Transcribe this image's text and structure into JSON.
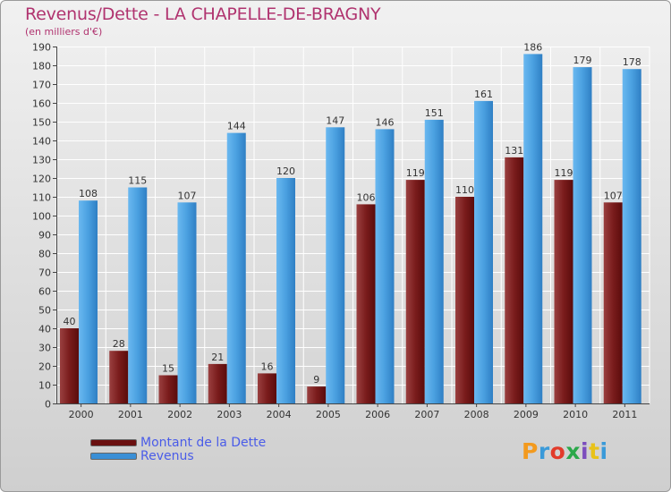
{
  "title": "Revenus/Dette - LA CHAPELLE-DE-BRAGNY",
  "subtitle": "(en milliers d'€)",
  "colors": {
    "debt": "#7a1414",
    "debt_light": "#8a3a3a",
    "revenue": "#3a8fd6",
    "revenue_light": "#5aaeee",
    "axis_text": "#333333",
    "label_text": "#333333",
    "title": "#b0336f",
    "legend_text": "#4a5ce8"
  },
  "legend": [
    {
      "label": "Montant de la Dette",
      "color": "#7a1414"
    },
    {
      "label": "Revenus",
      "color": "#3a8fd6"
    }
  ],
  "logo": {
    "text": "Proxiti",
    "letter_colors": [
      "#f39a1e",
      "#3a9ad9",
      "#e23b2a",
      "#2aa84a",
      "#7c4dbd",
      "#e8c21a",
      "#3a9ad9"
    ]
  },
  "chart_data": {
    "type": "bar",
    "title": "Revenus/Dette - LA CHAPELLE-DE-BRAGNY",
    "subtitle": "(en milliers d'€)",
    "xlabel": "",
    "ylabel": "",
    "ylim": [
      0,
      190
    ],
    "ytick_step": 10,
    "yticks": [
      "0",
      "10",
      "20",
      "30",
      "40",
      "50",
      "60",
      "70",
      "80",
      "90",
      "100",
      "110",
      "120",
      "130",
      "140",
      "150",
      "160",
      "170",
      "180",
      "190"
    ],
    "grid": true,
    "legend_position": "bottom-left",
    "categories": [
      "2000",
      "2001",
      "2002",
      "2003",
      "2004",
      "2005",
      "2006",
      "2007",
      "2008",
      "2009",
      "2010",
      "2011"
    ],
    "series": [
      {
        "name": "Montant de la Dette",
        "values": [
          40,
          28,
          15,
          21,
          16,
          9,
          106,
          119,
          110,
          131,
          119,
          107
        ]
      },
      {
        "name": "Revenus",
        "values": [
          108,
          115,
          107,
          144,
          120,
          147,
          146,
          151,
          161,
          186,
          179,
          178
        ]
      }
    ]
  }
}
